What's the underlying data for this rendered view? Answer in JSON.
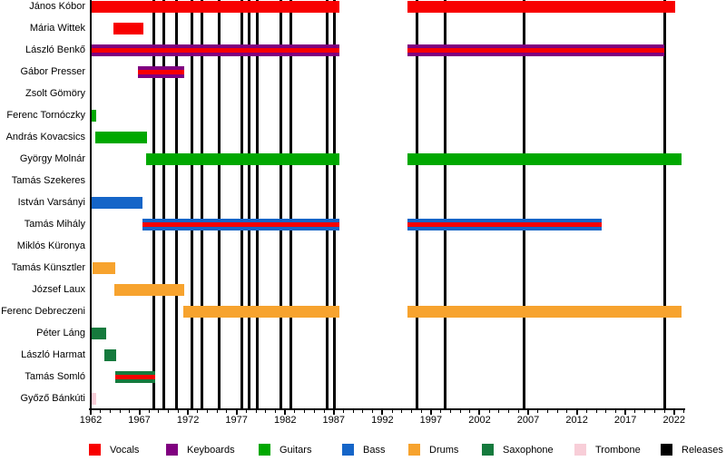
{
  "chart_data": {
    "type": "timeline",
    "title": "",
    "description": "Band membership timeline (gantt-style) with vertical release markers",
    "x_axis": {
      "start": 1962,
      "end": 2023,
      "tick_labels": [
        "1962",
        "1967",
        "1972",
        "1977",
        "1982",
        "1987",
        "1992",
        "1997",
        "2002",
        "2007",
        "2012",
        "2017",
        "2022"
      ],
      "minor_tick_step": 1
    },
    "colors": {
      "vocals": "#f80000",
      "keyboards": "#800080",
      "guitars": "#00a800",
      "bass": "#1565c8",
      "drums": "#f7a32e",
      "saxophone": "#157a3d",
      "trombone": "#f8ced8",
      "releases": "#000000"
    },
    "legend": [
      {
        "label": "Vocals",
        "color_key": "vocals"
      },
      {
        "label": "Keyboards",
        "color_key": "keyboards"
      },
      {
        "label": "Guitars",
        "color_key": "guitars"
      },
      {
        "label": "Bass",
        "color_key": "bass"
      },
      {
        "label": "Drums",
        "color_key": "drums"
      },
      {
        "label": "Saxophone",
        "color_key": "saxophone"
      },
      {
        "label": "Trombone",
        "color_key": "trombone"
      },
      {
        "label": "Releases",
        "color_key": "releases"
      }
    ],
    "members": [
      {
        "name": "János Kóbor",
        "instrument": "vocals",
        "vocals_too": false,
        "segments": [
          [
            1962.0,
            1987.6
          ],
          [
            1994.6,
            2022.1
          ]
        ]
      },
      {
        "name": "Mária Wittek",
        "instrument": "vocals",
        "vocals_too": false,
        "segments": [
          [
            1964.3,
            1967.4
          ]
        ]
      },
      {
        "name": "László Benkő",
        "instrument": "keyboards",
        "vocals_too": true,
        "segments": [
          [
            1962.0,
            1987.6
          ],
          [
            1994.6,
            2021.0
          ]
        ]
      },
      {
        "name": "Gábor Presser",
        "instrument": "keyboards",
        "vocals_too": true,
        "segments": [
          [
            1966.9,
            1971.6
          ]
        ]
      },
      {
        "name": "Zsolt Gömöry",
        "instrument": null,
        "vocals_too": false,
        "segments": []
      },
      {
        "name": "Ferenc Tornóczky",
        "instrument": "guitars",
        "vocals_too": false,
        "segments": [
          [
            1962.1,
            1962.6
          ]
        ]
      },
      {
        "name": "András Kovacsics",
        "instrument": "guitars",
        "vocals_too": false,
        "segments": [
          [
            1962.5,
            1967.8
          ]
        ]
      },
      {
        "name": "György Molnár",
        "instrument": "guitars",
        "vocals_too": false,
        "segments": [
          [
            1967.7,
            1987.6
          ],
          [
            1994.6,
            2022.8
          ]
        ]
      },
      {
        "name": "Tamás Szekeres",
        "instrument": null,
        "vocals_too": false,
        "segments": []
      },
      {
        "name": "István Varsányi",
        "instrument": "bass",
        "vocals_too": false,
        "segments": [
          [
            1962.1,
            1967.3
          ]
        ]
      },
      {
        "name": "Tamás Mihály",
        "instrument": "bass",
        "vocals_too": true,
        "segments": [
          [
            1967.3,
            1987.6
          ],
          [
            1994.6,
            2014.6
          ]
        ]
      },
      {
        "name": "Miklós Küronya",
        "instrument": null,
        "vocals_too": false,
        "segments": []
      },
      {
        "name": "Tamás Künsztler",
        "instrument": "drums",
        "vocals_too": false,
        "segments": [
          [
            1962.2,
            1964.5
          ]
        ]
      },
      {
        "name": "József Laux",
        "instrument": "drums",
        "vocals_too": false,
        "segments": [
          [
            1964.4,
            1971.6
          ]
        ]
      },
      {
        "name": "Ferenc Debreczeni",
        "instrument": "drums",
        "vocals_too": false,
        "segments": [
          [
            1971.5,
            1987.6
          ],
          [
            1994.6,
            2022.8
          ]
        ]
      },
      {
        "name": "Péter Láng",
        "instrument": "saxophone",
        "vocals_too": false,
        "segments": [
          [
            1962.1,
            1963.6
          ]
        ]
      },
      {
        "name": "László Harmat",
        "instrument": "saxophone",
        "vocals_too": false,
        "segments": [
          [
            1963.4,
            1964.6
          ]
        ]
      },
      {
        "name": "Tamás Somló",
        "instrument": "saxophone",
        "vocals_too": true,
        "segments": [
          [
            1964.5,
            1968.6
          ]
        ]
      },
      {
        "name": "Győző Bánkúti",
        "instrument": "trombone",
        "vocals_too": false,
        "segments": [
          [
            1962.1,
            1962.6
          ]
        ]
      }
    ],
    "releases": [
      1968.5,
      1969.5,
      1970.8,
      1972.4,
      1973.4,
      1975.2,
      1977.5,
      1978.3,
      1979.1,
      1981.6,
      1982.6,
      1986.3,
      1987.1,
      1995.6,
      1998.5,
      2006.6,
      2021.0
    ]
  }
}
